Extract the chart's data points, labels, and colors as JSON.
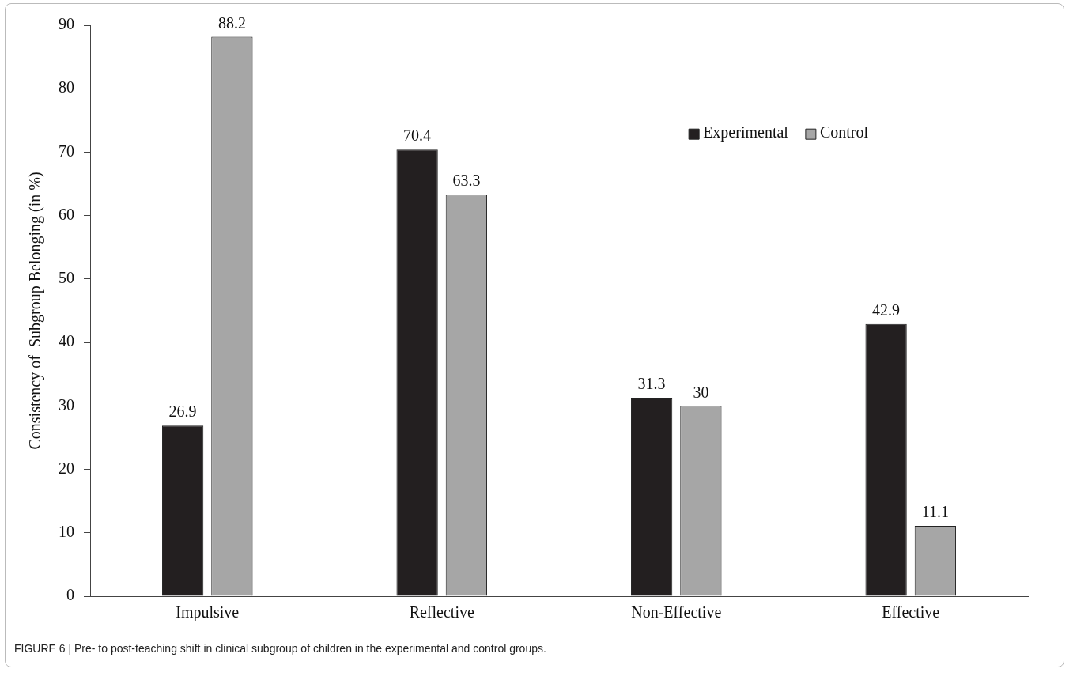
{
  "chart_data": {
    "type": "bar",
    "ylabel": "Consistency of  Subgroup Belonging (in %)",
    "categories": [
      "Impulsive",
      "Reflective",
      "Non-Effective",
      "Effective"
    ],
    "series": [
      {
        "name": "Experimental",
        "color": "#231f20",
        "values": [
          26.9,
          70.4,
          31.3,
          42.9
        ]
      },
      {
        "name": "Control",
        "color": "#a6a6a6",
        "values": [
          88.2,
          63.3,
          30,
          11.1
        ]
      }
    ],
    "ylim": [
      0,
      90
    ],
    "yticks": [
      0,
      10,
      20,
      30,
      40,
      50,
      60,
      70,
      80,
      90
    ],
    "grid": false,
    "legend": "top right",
    "data_labels": true,
    "annotations": [
      "FIGURE 6 | Pre- to post-teaching shift in clinical subgroup of children in the experimental and control groups."
    ]
  }
}
